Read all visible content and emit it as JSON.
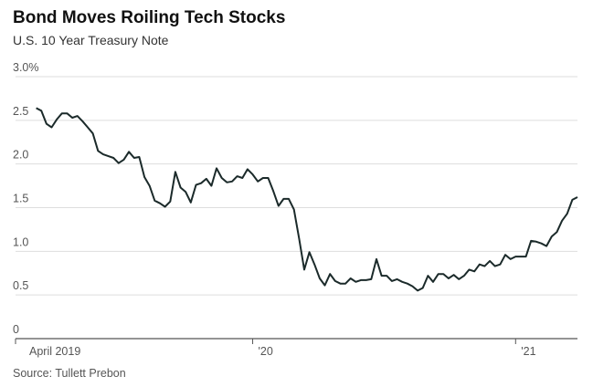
{
  "chart_data": {
    "type": "line",
    "title": "Bond Moves Roiling Tech Stocks",
    "subtitle": "U.S. 10 Year Treasury Note",
    "source": "Source: Tullett Prebon",
    "categories": [
      "April 2019",
      null,
      null,
      null,
      null,
      null,
      null,
      null,
      null,
      null,
      null,
      null,
      null,
      null,
      null,
      null,
      null,
      null,
      null,
      null,
      null,
      null,
      null,
      null,
      null,
      null,
      null,
      null,
      null,
      null,
      null,
      null,
      null,
      null,
      null,
      null,
      null,
      null,
      null,
      null,
      null,
      null,
      null,
      null,
      null,
      null,
      "'20",
      null,
      null,
      null,
      null,
      null,
      null,
      null,
      null,
      null,
      null,
      null,
      null,
      null,
      null,
      null,
      null,
      null,
      null,
      null,
      null,
      null,
      null,
      null,
      null,
      null,
      null,
      null,
      null,
      null,
      null,
      null,
      null,
      null,
      null,
      null,
      null,
      null,
      null,
      null,
      null,
      null,
      null,
      null,
      null,
      null,
      null,
      null,
      null,
      null,
      null,
      "'21",
      null,
      null,
      null,
      null,
      null,
      null,
      null,
      null,
      null,
      null,
      null,
      null
    ],
    "series": [
      {
        "name": "U.S. 10 Year Treasury Note",
        "color": "#1b2a2a",
        "values": [
          null,
          null,
          null,
          null,
          2.64,
          2.61,
          2.46,
          2.42,
          2.51,
          2.58,
          2.58,
          2.53,
          2.55,
          2.49,
          2.42,
          2.35,
          2.15,
          2.11,
          2.09,
          2.07,
          2.01,
          2.05,
          2.14,
          2.07,
          2.08,
          1.85,
          1.75,
          1.58,
          1.55,
          1.51,
          1.57,
          1.91,
          1.73,
          1.68,
          1.56,
          1.76,
          1.78,
          1.83,
          1.75,
          1.95,
          1.84,
          1.79,
          1.8,
          1.86,
          1.84,
          1.94,
          1.88,
          1.8,
          1.84,
          1.84,
          1.69,
          1.52,
          1.6,
          1.6,
          1.48,
          1.15,
          0.79,
          0.99,
          0.85,
          0.69,
          0.61,
          0.74,
          0.66,
          0.63,
          0.63,
          0.69,
          0.65,
          0.67,
          0.67,
          0.68,
          0.91,
          0.72,
          0.72,
          0.66,
          0.68,
          0.65,
          0.63,
          0.6,
          0.55,
          0.58,
          0.72,
          0.65,
          0.74,
          0.74,
          0.69,
          0.73,
          0.68,
          0.72,
          0.79,
          0.77,
          0.85,
          0.83,
          0.89,
          0.83,
          0.85,
          0.96,
          0.91,
          0.94,
          0.94,
          0.94,
          1.12,
          1.11,
          1.09,
          1.06,
          1.17,
          1.22,
          1.35,
          1.43,
          1.59,
          1.62
        ]
      }
    ],
    "ylim": [
      0,
      3
    ],
    "yticks": [
      0,
      0.5,
      {
        "value": 1,
        "label": "1.0"
      },
      1.5,
      {
        "value": 2,
        "label": "2.0"
      },
      2.5,
      {
        "value": 3,
        "label": "3.0%"
      }
    ],
    "grid": true
  }
}
